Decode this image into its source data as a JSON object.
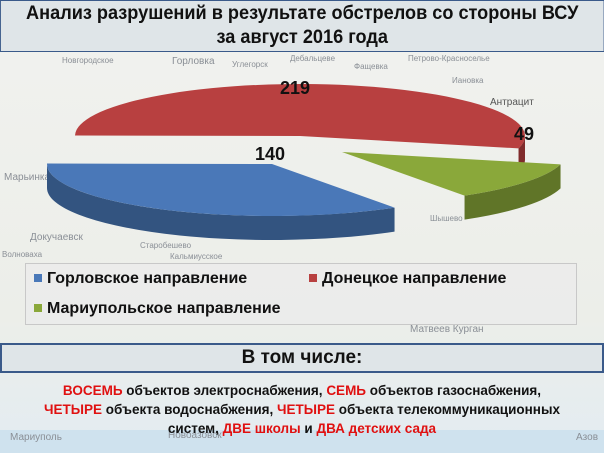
{
  "title": {
    "line1": "Анализ разрушений в результате обстрелов со стороны ВСУ",
    "line2": "за август 2016 года"
  },
  "map_labels": [
    "Горловка",
    "Новгородское",
    "Углегорск",
    "Дебальцеве",
    "Фащевка",
    "Петрово-Красноселье",
    "Иановка",
    "Антрацит",
    "Марьинка",
    "Докучаевск",
    "Волноваха",
    "Старобешево",
    "Кальмиусское",
    "Матвеев Курган",
    "Мариуполь",
    "Новоазовск",
    "Азов",
    "Шышево"
  ],
  "chart_data": {
    "type": "pie",
    "style": "3d-exploded",
    "categories": [
      "Горловское направление",
      "Донецкое направление",
      "Мариупольское направление"
    ],
    "values": [
      140,
      219,
      49
    ],
    "colors": [
      "#4a78b8",
      "#b84040",
      "#8aa83a"
    ],
    "legend_placement": "bottom"
  },
  "subheader": "В том числе:",
  "details": {
    "p1": "ВОСЕМЬ",
    "p2": " объектов электроснабжения, ",
    "p3": "СЕМЬ",
    "p4": " объектов газоснабжения,",
    "p5": "ЧЕТЫРЕ",
    "p6": " объекта водоснабжения, ",
    "p7": "ЧЕТЫРЕ",
    "p8": " объекта телекоммуникационных",
    "p9": "систем, ",
    "p10": "ДВЕ школы",
    "p11": "  и ",
    "p12": "ДВА детских сада"
  }
}
